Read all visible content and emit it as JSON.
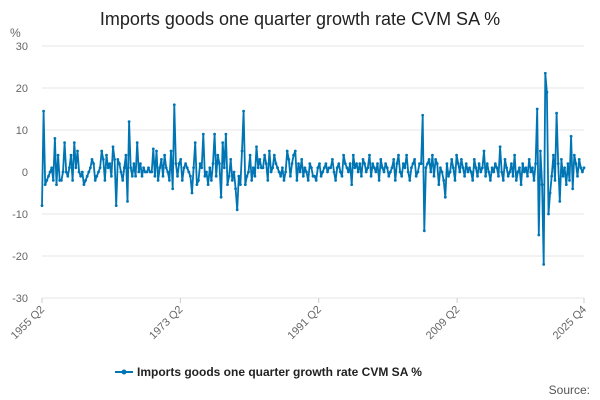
{
  "chart_data": {
    "type": "line",
    "title": "Imports goods one quarter growth rate CVM SA %",
    "ylabel": "%",
    "xlabel": "",
    "ylim": [
      -30,
      30
    ],
    "yticks": [
      "30",
      "20",
      "10",
      "0",
      "-10",
      "-20",
      "-30"
    ],
    "grid": true,
    "legend_position": "bottom",
    "x_start": "1955 Q2",
    "x_end": "2025 Q4",
    "xticks": [
      "1955 Q2",
      "1973 Q2",
      "1991 Q2",
      "2009 Q2",
      "2025 Q4"
    ],
    "series": [
      {
        "name": "Imports goods one quarter growth rate CVM SA %",
        "color": "#0075b4",
        "values": [
          -8,
          14.5,
          -3,
          -2,
          -1,
          0,
          1,
          -2,
          8,
          -3,
          4,
          -2,
          -2,
          0,
          7,
          0,
          -1,
          1,
          4,
          -2,
          7,
          1,
          5,
          0,
          -1,
          0,
          -3,
          -2,
          -1,
          0,
          1,
          3,
          2,
          -2,
          -1,
          0,
          1,
          5,
          3,
          -2,
          4,
          1,
          2,
          -1,
          6,
          3,
          -8,
          3,
          2,
          0,
          -2,
          1,
          4,
          -7,
          12,
          1,
          -1,
          2,
          -1,
          7,
          0,
          2,
          -1,
          1,
          0,
          0,
          1,
          0,
          0,
          5.5,
          -1,
          5,
          -2,
          1,
          3,
          -1,
          4,
          1,
          0,
          -2,
          5,
          -4,
          16,
          2,
          -1,
          2,
          3,
          -2,
          1,
          2,
          1,
          0,
          -1,
          -5,
          1,
          7,
          -3,
          -2,
          2,
          1,
          9,
          -1,
          0,
          -3,
          1,
          -2,
          2,
          9,
          -1,
          4,
          2,
          -6,
          7,
          1,
          9,
          -3,
          -1,
          3,
          -2,
          0,
          -4,
          -9,
          -1,
          -3,
          5,
          14.5,
          -3,
          -1,
          0,
          4,
          -2,
          1,
          -1,
          6,
          1,
          3,
          1,
          1,
          4,
          2,
          -2,
          5,
          0,
          1,
          4,
          2,
          1,
          0,
          -1,
          1,
          -2,
          0,
          5,
          3,
          -1,
          2,
          4,
          5,
          -2,
          2,
          0,
          3,
          -1,
          1,
          0,
          -2,
          2,
          1,
          -1,
          -1,
          -2,
          1,
          2,
          -1,
          0,
          1,
          2,
          0,
          1,
          1,
          3,
          0,
          -2,
          1,
          2,
          0,
          -1,
          4,
          2,
          1,
          0,
          2,
          -3,
          4,
          1,
          2,
          0,
          2,
          -1,
          3,
          2,
          0,
          1,
          4,
          -1,
          2,
          1,
          0,
          2,
          -2,
          3,
          1,
          0,
          2,
          1,
          -1,
          0,
          1,
          3,
          -2,
          2,
          4,
          0,
          -1,
          2,
          1,
          4,
          0,
          -2,
          1,
          2,
          3,
          -1,
          0,
          2,
          2,
          13.5,
          -14,
          1,
          2,
          3,
          0,
          4,
          -1,
          3,
          2,
          -3,
          1,
          0,
          -2,
          -6,
          2,
          -1,
          0,
          3,
          1,
          -2,
          4,
          2,
          0,
          3,
          1,
          -1,
          2,
          0,
          1,
          0,
          -2,
          3,
          1,
          -1,
          2,
          0,
          1,
          5,
          -1,
          2,
          0,
          -2,
          1,
          0,
          2,
          1,
          -1,
          6,
          0,
          -2,
          3,
          1,
          -1,
          0,
          2,
          -1,
          4,
          -2,
          0,
          1,
          -3,
          2,
          0,
          1,
          -1,
          3,
          0,
          1,
          -2,
          2,
          15,
          -15,
          5,
          -3,
          -22,
          23.5,
          19,
          -10,
          -5,
          -1,
          4,
          -2,
          14,
          2,
          -7,
          3,
          -1,
          1,
          -3,
          2,
          -2,
          8.5,
          -4,
          4,
          2,
          -1,
          3,
          1,
          0,
          1
        ]
      }
    ]
  },
  "source_label": "Source:"
}
